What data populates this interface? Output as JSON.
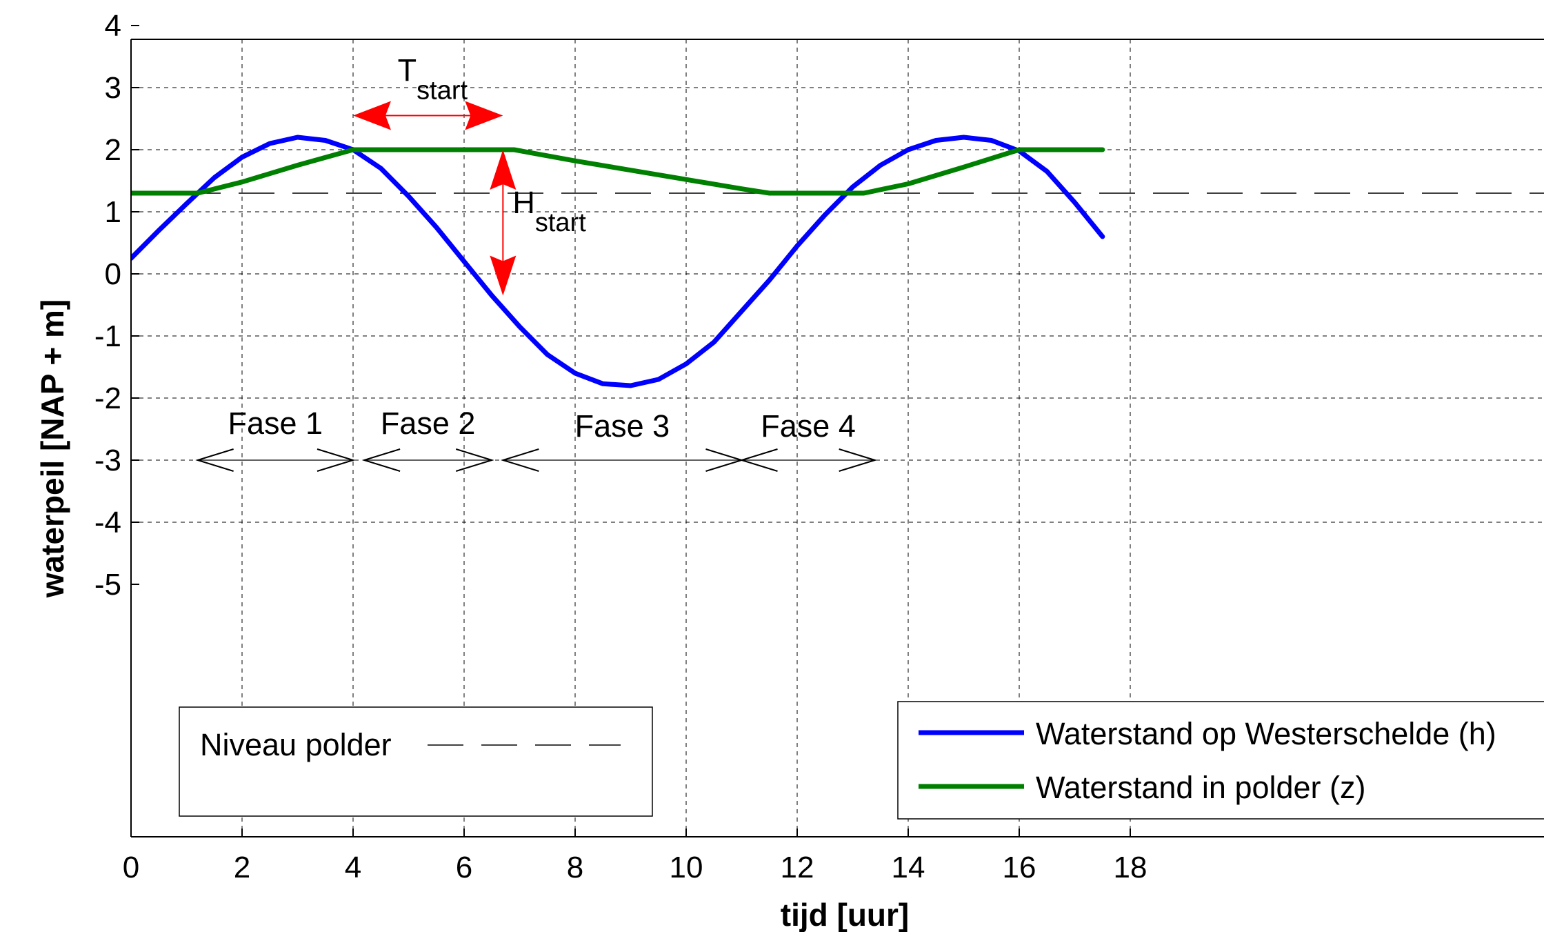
{
  "chart_data": {
    "type": "line",
    "xlabel": "tijd [uur]",
    "ylabel": "waterpeil [NAP + m]",
    "xlim": [
      0,
      18
    ],
    "ylim": [
      -5,
      4
    ],
    "x_ticks": [
      "0",
      "2",
      "4",
      "6",
      "8",
      "10",
      "12",
      "14",
      "16",
      "18"
    ],
    "y_ticks": [
      "4",
      "3",
      "2",
      "1",
      "0",
      "-1",
      "-2",
      "-3",
      "-4",
      "-5"
    ],
    "x_tick_values": [
      0,
      2,
      4,
      6,
      8,
      10,
      12,
      14,
      16,
      18
    ],
    "y_tick_values": [
      4,
      3,
      2,
      1,
      0,
      -1,
      -2,
      -3,
      -4,
      -5
    ],
    "grid": true,
    "series": [
      {
        "name": "Waterstand op Westerschelde (h)",
        "color": "#0000ff",
        "x": [
          0,
          0.5,
          1,
          1.5,
          2,
          2.5,
          3,
          3.5,
          4,
          4.5,
          5,
          5.5,
          6,
          6.5,
          7,
          7.5,
          8,
          8.5,
          9,
          9.5,
          10,
          10.5,
          11,
          11.5,
          12,
          12.5,
          13,
          13.5,
          14,
          14.5,
          15,
          15.5,
          16,
          16.5,
          17,
          17.5
        ],
        "y": [
          0.25,
          0.7,
          1.13,
          1.55,
          1.88,
          2.1,
          2.2,
          2.15,
          2.0,
          1.7,
          1.25,
          0.75,
          0.2,
          -0.35,
          -0.85,
          -1.3,
          -1.6,
          -1.77,
          -1.8,
          -1.7,
          -1.45,
          -1.1,
          -0.6,
          -0.1,
          0.45,
          0.95,
          1.4,
          1.75,
          2.0,
          2.15,
          2.2,
          2.15,
          1.98,
          1.65,
          1.15,
          0.6
        ]
      },
      {
        "name": "Waterstand in polder (z)",
        "color": "#008000",
        "x": [
          0,
          1.2,
          2,
          3,
          4,
          5,
          6,
          6.9,
          8,
          9,
          10,
          11,
          11.5,
          12,
          13.2,
          14,
          15,
          16,
          17,
          17.5
        ],
        "y": [
          1.3,
          1.3,
          1.48,
          1.75,
          2.0,
          2.0,
          2.0,
          2.0,
          1.82,
          1.67,
          1.52,
          1.37,
          1.3,
          1.3,
          1.3,
          1.45,
          1.72,
          2.0,
          2.0,
          2.0
        ]
      }
    ],
    "reference_line": {
      "label": "Niveau polder",
      "y": 1.3
    },
    "phases": [
      {
        "label": "Fase 1",
        "x_start": 1.2,
        "x_end": 4.0,
        "y": -3
      },
      {
        "label": "Fase 2",
        "x_start": 4.2,
        "x_end": 6.5,
        "y": -3
      },
      {
        "label": "Fase 3",
        "x_start": 6.7,
        "x_end": 11.0,
        "y": -3
      },
      {
        "label": "Fase 4",
        "x_start": 11.0,
        "x_end": 13.4,
        "y": -3
      }
    ],
    "annotations": [
      {
        "name": "T",
        "sub": "start",
        "type": "horizontal-arrow",
        "x_start": 4.0,
        "x_end": 6.7,
        "y": 2.55
      },
      {
        "name": "H",
        "sub": "start",
        "type": "vertical-arrow",
        "x": 6.7,
        "y_start": 2.0,
        "y_end": -0.35
      }
    ],
    "legend_placement": "bottom-right"
  }
}
